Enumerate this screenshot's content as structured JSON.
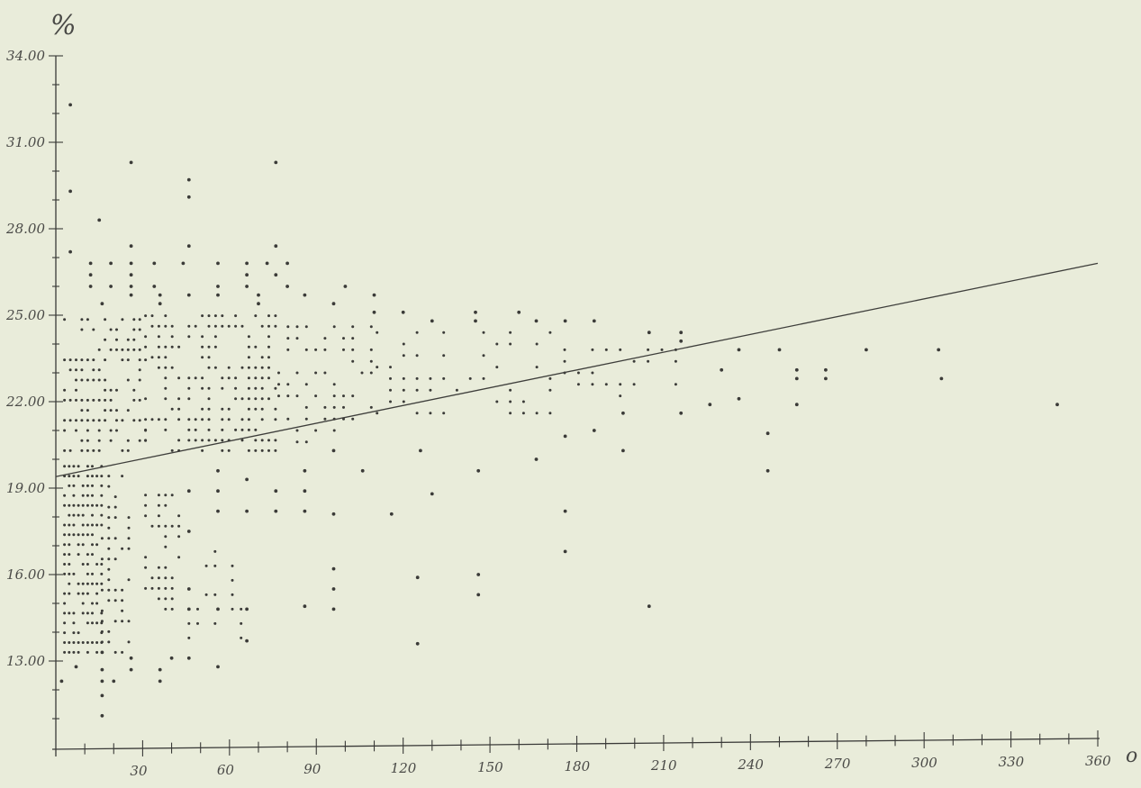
{
  "chart_data": {
    "type": "scatter",
    "title": "",
    "xlabel": "",
    "ylabel": "",
    "y_unit_label": "%",
    "x_unit_label": "o",
    "xlim": [
      0,
      360
    ],
    "ylim": [
      10,
      34
    ],
    "x_ticks": [
      30,
      60,
      90,
      120,
      150,
      180,
      210,
      240,
      270,
      300,
      330,
      360
    ],
    "x_tick_labels": [
      "30",
      "60",
      "90",
      "120",
      "150",
      "180",
      "210",
      "240",
      "270",
      "300",
      "330",
      "360"
    ],
    "y_ticks": [
      13,
      16,
      19,
      22,
      25,
      28,
      31,
      34
    ],
    "y_tick_labels": [
      "13.00",
      "16.00",
      "19.00",
      "22.00",
      "25.00",
      "28.00",
      "31.00",
      "34.00"
    ],
    "grid": false,
    "legend": "none",
    "colors": {
      "background": "#e9ecda",
      "ink": "#3b3b38"
    },
    "trend_line": {
      "x": [
        0,
        360
      ],
      "y": [
        19.4,
        26.8
      ]
    },
    "points": [
      [
        5,
        32.3
      ],
      [
        5,
        29.3
      ],
      [
        5,
        27.2
      ],
      [
        15,
        28.3
      ],
      [
        26,
        30.3
      ],
      [
        46,
        29.7
      ],
      [
        46,
        29.1
      ],
      [
        46,
        27.4
      ],
      [
        76,
        30.3
      ],
      [
        76,
        27.4
      ],
      [
        26,
        27.4
      ],
      [
        12,
        26.8
      ],
      [
        19,
        26.8
      ],
      [
        26,
        26.8
      ],
      [
        34,
        26.8
      ],
      [
        44,
        26.8
      ],
      [
        56,
        26.8
      ],
      [
        66,
        26.8
      ],
      [
        73,
        26.8
      ],
      [
        80,
        26.8
      ],
      [
        12,
        26.4
      ],
      [
        26,
        26.4
      ],
      [
        66,
        26.4
      ],
      [
        76,
        26.4
      ],
      [
        12,
        26.0
      ],
      [
        19,
        26.0
      ],
      [
        26,
        26.0
      ],
      [
        34,
        26.0
      ],
      [
        56,
        26.0
      ],
      [
        66,
        26.0
      ],
      [
        80,
        26.0
      ],
      [
        100,
        26.0
      ],
      [
        26,
        25.7
      ],
      [
        36,
        25.7
      ],
      [
        46,
        25.7
      ],
      [
        56,
        25.7
      ],
      [
        70,
        25.7
      ],
      [
        86,
        25.7
      ],
      [
        110,
        25.7
      ],
      [
        16,
        25.4
      ],
      [
        36,
        25.4
      ],
      [
        70,
        25.4
      ],
      [
        96,
        25.4
      ],
      [
        110,
        25.1
      ],
      [
        120,
        25.1
      ],
      [
        145,
        25.1
      ],
      [
        160,
        25.1
      ],
      [
        130,
        24.8
      ],
      [
        145,
        24.8
      ],
      [
        166,
        24.8
      ],
      [
        176,
        24.8
      ],
      [
        186,
        24.8
      ],
      [
        205,
        24.4
      ],
      [
        216,
        24.4
      ],
      [
        236,
        23.8
      ],
      [
        250,
        23.8
      ],
      [
        280,
        23.8
      ],
      [
        305,
        23.8
      ],
      [
        216,
        24.1
      ],
      [
        230,
        23.1
      ],
      [
        256,
        23.1
      ],
      [
        266,
        23.1
      ],
      [
        256,
        22.8
      ],
      [
        266,
        22.8
      ],
      [
        306,
        22.8
      ],
      [
        346,
        21.9
      ],
      [
        246,
        20.9
      ],
      [
        256,
        21.9
      ],
      [
        96,
        18.1
      ],
      [
        116,
        18.1
      ],
      [
        176,
        18.2
      ],
      [
        176,
        16.8
      ],
      [
        130,
        18.8
      ],
      [
        96,
        16.2
      ],
      [
        96,
        15.5
      ],
      [
        96,
        14.8
      ],
      [
        86,
        14.9
      ],
      [
        125,
        15.9
      ],
      [
        146,
        16.0
      ],
      [
        146,
        15.3
      ],
      [
        125,
        13.6
      ],
      [
        205,
        14.9
      ],
      [
        196,
        20.3
      ],
      [
        216,
        21.6
      ],
      [
        236,
        22.1
      ],
      [
        226,
        21.9
      ],
      [
        166,
        20.0
      ],
      [
        176,
        20.8
      ],
      [
        186,
        21.0
      ],
      [
        196,
        21.6
      ],
      [
        246,
        19.6
      ],
      [
        146,
        19.6
      ],
      [
        106,
        19.6
      ],
      [
        126,
        20.3
      ],
      [
        96,
        20.3
      ],
      [
        86,
        19.6
      ],
      [
        86,
        18.9
      ],
      [
        86,
        18.2
      ],
      [
        76,
        18.9
      ],
      [
        76,
        18.2
      ],
      [
        66,
        19.3
      ],
      [
        66,
        18.2
      ],
      [
        66,
        14.8
      ],
      [
        66,
        13.7
      ],
      [
        56,
        19.6
      ],
      [
        56,
        18.9
      ],
      [
        56,
        18.2
      ],
      [
        56,
        14.8
      ],
      [
        56,
        12.8
      ],
      [
        46,
        18.9
      ],
      [
        46,
        17.5
      ],
      [
        46,
        15.5
      ],
      [
        46,
        14.8
      ],
      [
        46,
        13.1
      ],
      [
        2,
        12.3
      ],
      [
        7,
        12.8
      ],
      [
        16,
        13.3
      ],
      [
        16,
        12.7
      ],
      [
        16,
        12.3
      ],
      [
        16,
        11.8
      ],
      [
        16,
        11.1
      ],
      [
        20,
        12.3
      ],
      [
        26,
        13.1
      ],
      [
        26,
        12.7
      ],
      [
        36,
        12.7
      ],
      [
        36,
        12.3
      ],
      [
        40,
        13.1
      ]
    ],
    "point_groups": [
      {
        "x0": 3,
        "x1": 31,
        "dx": 2,
        "y0": 20.3,
        "y1": 25.1,
        "dy": 0.35,
        "density": 0.55
      },
      {
        "x0": 3,
        "x1": 16,
        "dx": 1.6,
        "y0": 13.3,
        "y1": 20.0,
        "dy": 0.34,
        "density": 0.75
      },
      {
        "x0": 16,
        "x1": 27,
        "dx": 2.3,
        "y0": 13.3,
        "y1": 19.6,
        "dy": 0.36,
        "density": 0.55
      },
      {
        "x0": 31,
        "x1": 44,
        "dx": 2.3,
        "y0": 14.8,
        "y1": 18.9,
        "dy": 0.36,
        "density": 0.5
      },
      {
        "x0": 31,
        "x1": 44,
        "dx": 2.3,
        "y0": 20.3,
        "y1": 25.1,
        "dy": 0.36,
        "density": 0.55
      },
      {
        "x0": 46,
        "x1": 77,
        "dx": 2.3,
        "y0": 20.3,
        "y1": 25.1,
        "dy": 0.36,
        "density": 0.58
      },
      {
        "x0": 46,
        "x1": 66,
        "dx": 3.0,
        "y0": 13.3,
        "y1": 17.0,
        "dy": 0.5,
        "density": 0.35
      },
      {
        "x0": 77,
        "x1": 111,
        "dx": 3.2,
        "y0": 20.6,
        "y1": 24.8,
        "dy": 0.4,
        "density": 0.5
      },
      {
        "x0": 111,
        "x1": 171,
        "dx": 4.6,
        "y0": 21.6,
        "y1": 24.5,
        "dy": 0.4,
        "density": 0.45
      },
      {
        "x0": 171,
        "x1": 216,
        "dx": 4.8,
        "y0": 22.2,
        "y1": 23.8,
        "dy": 0.4,
        "density": 0.45
      }
    ]
  }
}
